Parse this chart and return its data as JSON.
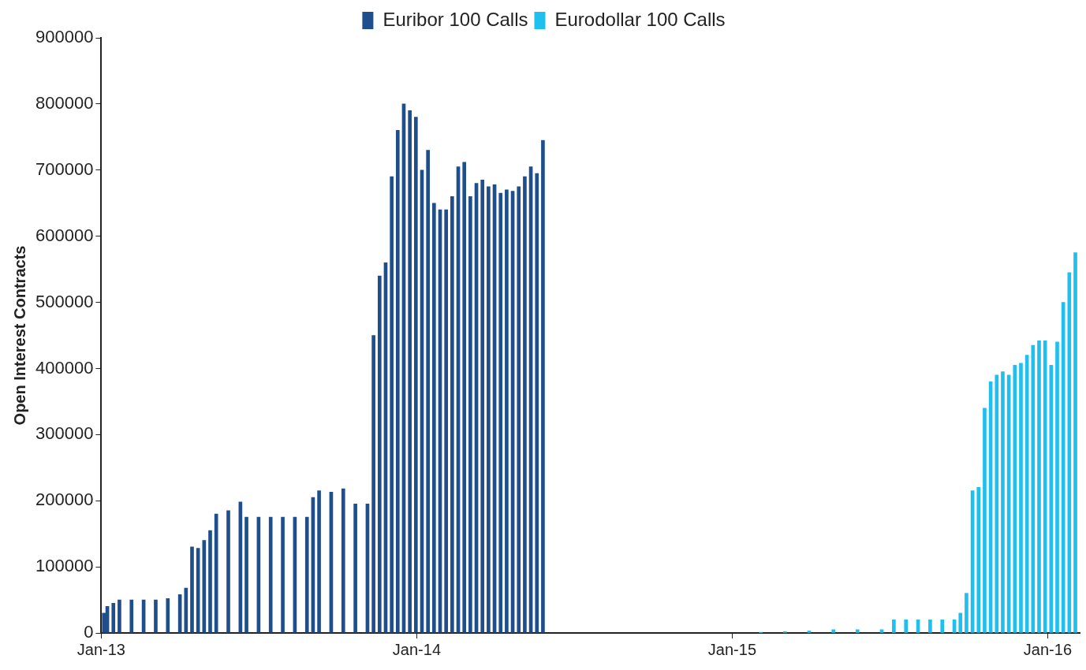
{
  "chart_data": {
    "type": "bar",
    "ylabel": "Open Interest Contracts",
    "xlim": [
      "2013-01-01",
      "2016-02-07"
    ],
    "xticks": [
      {
        "value": "2013-01-01",
        "label": "Jan-13"
      },
      {
        "value": "2014-01-01",
        "label": "Jan-14"
      },
      {
        "value": "2015-01-01",
        "label": "Jan-15"
      },
      {
        "value": "2016-01-01",
        "label": "Jan-16"
      }
    ],
    "ylim": [
      0,
      900000
    ],
    "yticks": [
      0,
      100000,
      200000,
      300000,
      400000,
      500000,
      600000,
      700000,
      800000,
      900000
    ],
    "grid": false,
    "legend": "top",
    "series": [
      {
        "name": "Euribor 100 Calls",
        "color": "#1f4e8c",
        "x": [
          "2013-01-04",
          "2013-01-08",
          "2013-01-15",
          "2013-01-22",
          "2013-02-05",
          "2013-02-19",
          "2013-03-05",
          "2013-03-19",
          "2013-04-02",
          "2013-04-09",
          "2013-04-16",
          "2013-04-23",
          "2013-04-30",
          "2013-05-07",
          "2013-05-14",
          "2013-05-28",
          "2013-06-11",
          "2013-06-18",
          "2013-07-02",
          "2013-07-16",
          "2013-07-30",
          "2013-08-13",
          "2013-08-27",
          "2013-09-03",
          "2013-09-10",
          "2013-09-24",
          "2013-10-08",
          "2013-10-22",
          "2013-11-05",
          "2013-11-12",
          "2013-11-19",
          "2013-11-26",
          "2013-12-03",
          "2013-12-10",
          "2013-12-17",
          "2013-12-24",
          "2013-12-31",
          "2014-01-07",
          "2014-01-14",
          "2014-01-21",
          "2014-01-28",
          "2014-02-04",
          "2014-02-11",
          "2014-02-18",
          "2014-02-25",
          "2014-03-04",
          "2014-03-11",
          "2014-03-18",
          "2014-03-25",
          "2014-04-01",
          "2014-04-08",
          "2014-04-15",
          "2014-04-22",
          "2014-04-29",
          "2014-05-06",
          "2014-05-13",
          "2014-05-20",
          "2014-05-27"
        ],
        "values": [
          30000,
          40000,
          45000,
          50000,
          50000,
          50000,
          50000,
          52000,
          58000,
          68000,
          130000,
          128000,
          140000,
          155000,
          180000,
          185000,
          198000,
          175000,
          175000,
          175000,
          175000,
          175000,
          175000,
          205000,
          215000,
          213000,
          218000,
          195000,
          195000,
          450000,
          540000,
          560000,
          690000,
          760000,
          800000,
          790000,
          780000,
          700000,
          730000,
          650000,
          640000,
          640000,
          660000,
          705000,
          712000,
          660000,
          680000,
          685000,
          675000,
          678000,
          665000,
          670000,
          668000,
          675000,
          690000,
          705000,
          695000,
          745000
        ]
      },
      {
        "name": "Eurodollar 100 Calls",
        "color": "#1fbff0",
        "x": [
          "2015-02-03",
          "2015-03-03",
          "2015-03-31",
          "2015-04-28",
          "2015-05-26",
          "2015-06-23",
          "2015-07-07",
          "2015-07-21",
          "2015-08-04",
          "2015-08-18",
          "2015-09-01",
          "2015-09-15",
          "2015-09-22",
          "2015-09-29",
          "2015-10-06",
          "2015-10-13",
          "2015-10-20",
          "2015-10-27",
          "2015-11-03",
          "2015-11-10",
          "2015-11-17",
          "2015-11-24",
          "2015-12-01",
          "2015-12-08",
          "2015-12-15",
          "2015-12-22",
          "2015-12-29",
          "2016-01-05",
          "2016-01-12",
          "2016-01-19",
          "2016-01-26",
          "2016-02-02"
        ],
        "values": [
          1000,
          2000,
          3000,
          5000,
          5000,
          5000,
          20000,
          20000,
          20000,
          20000,
          20000,
          20000,
          30000,
          60000,
          215000,
          220000,
          340000,
          380000,
          390000,
          395000,
          390000,
          405000,
          408000,
          420000,
          435000,
          442000,
          442000,
          405000,
          440000,
          500000,
          545000,
          575000
        ]
      }
    ]
  }
}
